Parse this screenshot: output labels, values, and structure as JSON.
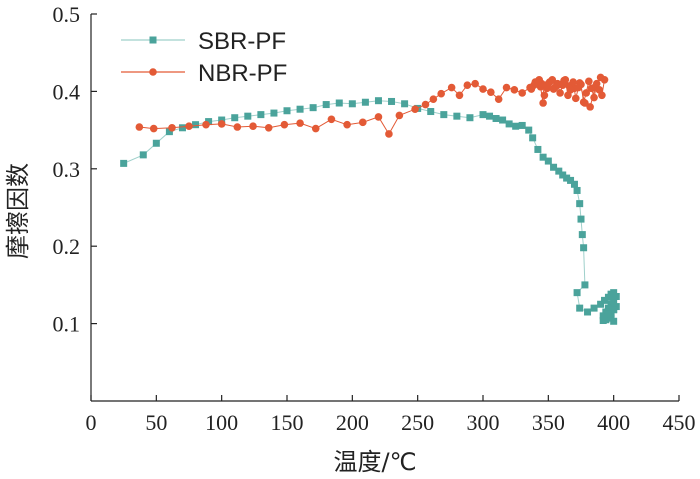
{
  "chart_data": {
    "type": "scatter",
    "xlabel": "温度/℃",
    "ylabel": "摩擦因数",
    "xlim": [
      0,
      450
    ],
    "ylim": [
      0,
      0.5
    ],
    "xticks": [
      "0",
      "50",
      "100",
      "150",
      "200",
      "250",
      "300",
      "350",
      "400",
      "450"
    ],
    "yticks": [
      "0.1",
      "0.2",
      "0.3",
      "0.4",
      "0.5"
    ],
    "legend_position": "top-left",
    "grid": false,
    "series": [
      {
        "name": "SBR-PF",
        "color": "#4aa39b",
        "line_color": "#9fd0cb",
        "marker": "square",
        "x": [
          25,
          40,
          50,
          60,
          70,
          80,
          90,
          100,
          110,
          120,
          130,
          140,
          150,
          160,
          170,
          180,
          190,
          200,
          210,
          220,
          230,
          240,
          250,
          260,
          270,
          280,
          290,
          300,
          305,
          310,
          315,
          320,
          325,
          330,
          335,
          338,
          342,
          346,
          350,
          354,
          358,
          361,
          364,
          367,
          370,
          372,
          374,
          375,
          376,
          377,
          378,
          372,
          374,
          380,
          385,
          390,
          393,
          396,
          398,
          400,
          402,
          400,
          398,
          396,
          394,
          392,
          394,
          396,
          398,
          400,
          402,
          400,
          398,
          396,
          394,
          392,
          394,
          396,
          398,
          400
        ],
        "y": [
          0.307,
          0.318,
          0.333,
          0.348,
          0.353,
          0.357,
          0.361,
          0.363,
          0.366,
          0.368,
          0.37,
          0.372,
          0.375,
          0.377,
          0.379,
          0.383,
          0.385,
          0.384,
          0.386,
          0.388,
          0.387,
          0.384,
          0.378,
          0.374,
          0.37,
          0.368,
          0.366,
          0.37,
          0.368,
          0.365,
          0.363,
          0.358,
          0.355,
          0.356,
          0.35,
          0.34,
          0.325,
          0.315,
          0.31,
          0.302,
          0.297,
          0.292,
          0.288,
          0.285,
          0.28,
          0.272,
          0.255,
          0.235,
          0.215,
          0.198,
          0.15,
          0.14,
          0.12,
          0.115,
          0.12,
          0.125,
          0.13,
          0.134,
          0.138,
          0.14,
          0.135,
          0.13,
          0.125,
          0.12,
          0.115,
          0.11,
          0.105,
          0.108,
          0.112,
          0.118,
          0.122,
          0.118,
          0.113,
          0.109,
          0.106,
          0.104,
          0.108,
          0.112,
          0.107,
          0.103
        ]
      },
      {
        "name": "NBR-PF",
        "color": "#e35a36",
        "line_color": "#e35a36",
        "marker": "circle",
        "x": [
          37,
          48,
          62,
          75,
          88,
          100,
          112,
          124,
          136,
          148,
          160,
          172,
          184,
          196,
          208,
          220,
          228,
          236,
          248,
          256,
          262,
          268,
          276,
          282,
          288,
          294,
          300,
          306,
          312,
          318,
          324,
          330,
          336,
          340,
          344,
          346,
          350,
          354,
          358,
          362,
          366,
          370,
          374,
          378,
          382,
          386,
          390,
          393,
          391,
          389,
          387,
          385,
          383,
          381,
          379,
          377,
          375,
          373,
          371,
          369,
          367,
          365,
          363,
          361,
          359,
          357,
          355,
          353,
          351,
          349,
          347,
          345,
          343,
          341,
          339,
          337
        ],
        "y": [
          0.354,
          0.352,
          0.353,
          0.355,
          0.357,
          0.358,
          0.354,
          0.355,
          0.353,
          0.357,
          0.359,
          0.352,
          0.364,
          0.357,
          0.36,
          0.367,
          0.345,
          0.369,
          0.377,
          0.383,
          0.39,
          0.397,
          0.405,
          0.395,
          0.408,
          0.41,
          0.403,
          0.399,
          0.39,
          0.405,
          0.402,
          0.398,
          0.405,
          0.412,
          0.406,
          0.385,
          0.41,
          0.403,
          0.409,
          0.414,
          0.407,
          0.404,
          0.411,
          0.385,
          0.38,
          0.406,
          0.418,
          0.415,
          0.395,
          0.402,
          0.41,
          0.392,
          0.404,
          0.413,
          0.398,
          0.386,
          0.409,
          0.405,
          0.391,
          0.412,
          0.402,
          0.395,
          0.415,
          0.408,
          0.398,
          0.41,
          0.405,
          0.415,
          0.412,
          0.404,
          0.395,
          0.41,
          0.415,
          0.412,
          0.408,
          0.403
        ]
      }
    ]
  }
}
